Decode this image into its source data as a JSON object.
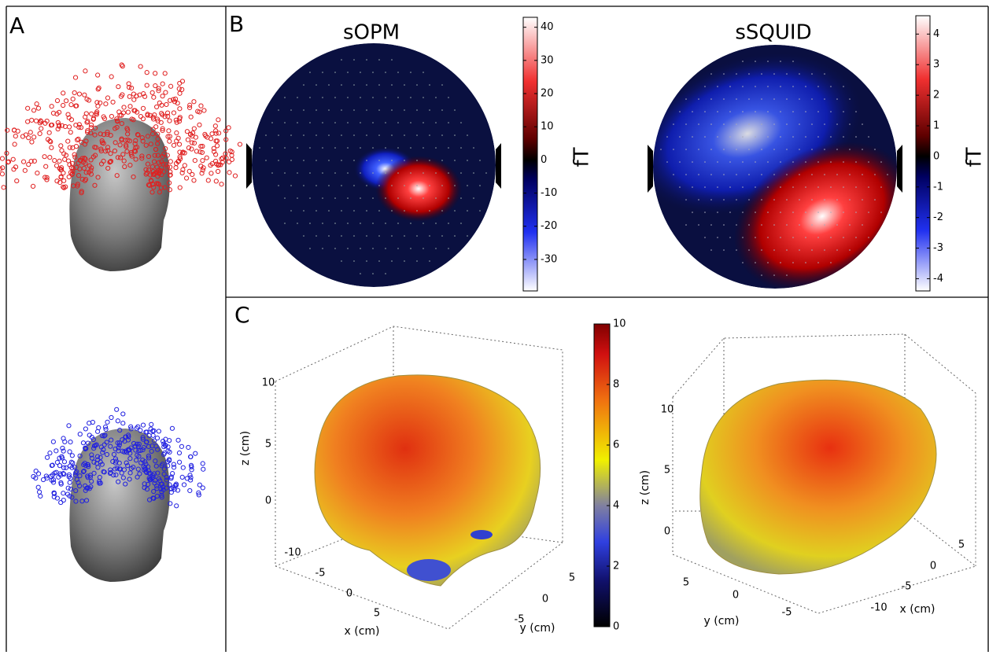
{
  "panels": {
    "a": {
      "label": "A"
    },
    "b": {
      "label": "B",
      "maps": [
        {
          "title": "sOPM",
          "colorbar": {
            "ylim": [
              -39.5,
              43
            ],
            "yticks": [
              40,
              30,
              20,
              10,
              0,
              -10,
              -20,
              -30
            ],
            "label": "fT"
          }
        },
        {
          "title": "sSQUID",
          "colorbar": {
            "ylim": [
              -4.4,
              4.6
            ],
            "yticks": [
              4,
              3,
              2,
              1,
              0,
              -1,
              -2,
              -3,
              -4
            ],
            "label": "fT"
          }
        }
      ]
    },
    "c": {
      "label": "C",
      "colorbar": {
        "ylim": [
          0,
          10
        ],
        "yticks": [
          10,
          8,
          6,
          4,
          2,
          0
        ]
      },
      "views": [
        {
          "x_label": "x (cm)",
          "y_label": "y (cm)",
          "z_label": "z (cm)",
          "xticks": [
            -10,
            -5,
            0,
            5
          ],
          "yticks": [
            5,
            0,
            -5
          ],
          "zticks": [
            10,
            5,
            0
          ]
        },
        {
          "x_label": "x (cm)",
          "y_label": "y (cm)",
          "z_label": "z (cm)",
          "xticks": [
            5,
            0,
            -5,
            -10
          ],
          "yticks": [
            5,
            0,
            -5
          ],
          "zticks": [
            10,
            5,
            0
          ]
        }
      ]
    }
  }
}
